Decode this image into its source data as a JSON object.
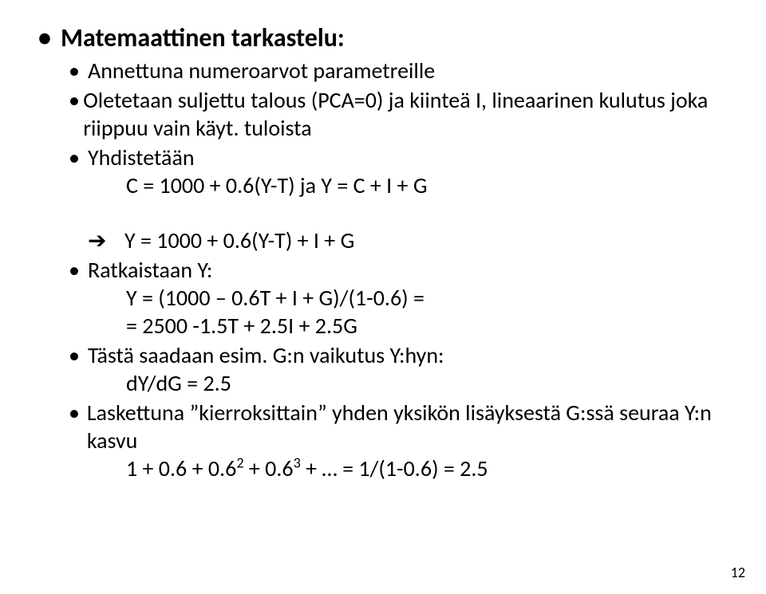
{
  "title": "Matemaattinen tarkastelu:",
  "l1a": "Annettuna numeroarvot parametreille",
  "l1b": "Oletetaan suljettu talous (PCA=0) ja kiinteä I, lineaarinen kulutus joka riippuu vain käyt. tuloista",
  "l1c": "Yhdistetään",
  "l1c_sub": "C = 1000 + 0.6(Y-T)   ja  Y  = C + I + G",
  "arrow_text": "Y = 1000 + 0.6(Y-T) + I + G",
  "l1d": "Ratkaistaan Y:",
  "l1d_sub1": "Y = (1000 – 0.6T + I + G)/(1-0.6) =",
  "l1d_sub2": "= 2500 -1.5T + 2.5I + 2.5G",
  "l1e": "Tästä saadaan esim. G:n vaikutus Y:hyn:",
  "l1e_sub": "dY/dG = 2.5",
  "l1f_a": "Laskettuna ”kierroksittain” yhden yksikön lisäyksestä G:ssä seuraa Y:n kasvu",
  "l1f_sub_pre": "1 + 0.6 + 0.6",
  "l1f_sup1": "2",
  "l1f_mid": " + 0.6",
  "l1f_sup2": "3",
  "l1f_post": " + … = 1/(1-0.6) = 2.5",
  "page_number": "12",
  "colors": {
    "text": "#000000",
    "background": "#ffffff"
  },
  "fonts": {
    "title_size_pt": 32,
    "body_size_pt": 28,
    "page_num_size_pt": 18,
    "title_weight": 700,
    "body_weight": 400
  }
}
